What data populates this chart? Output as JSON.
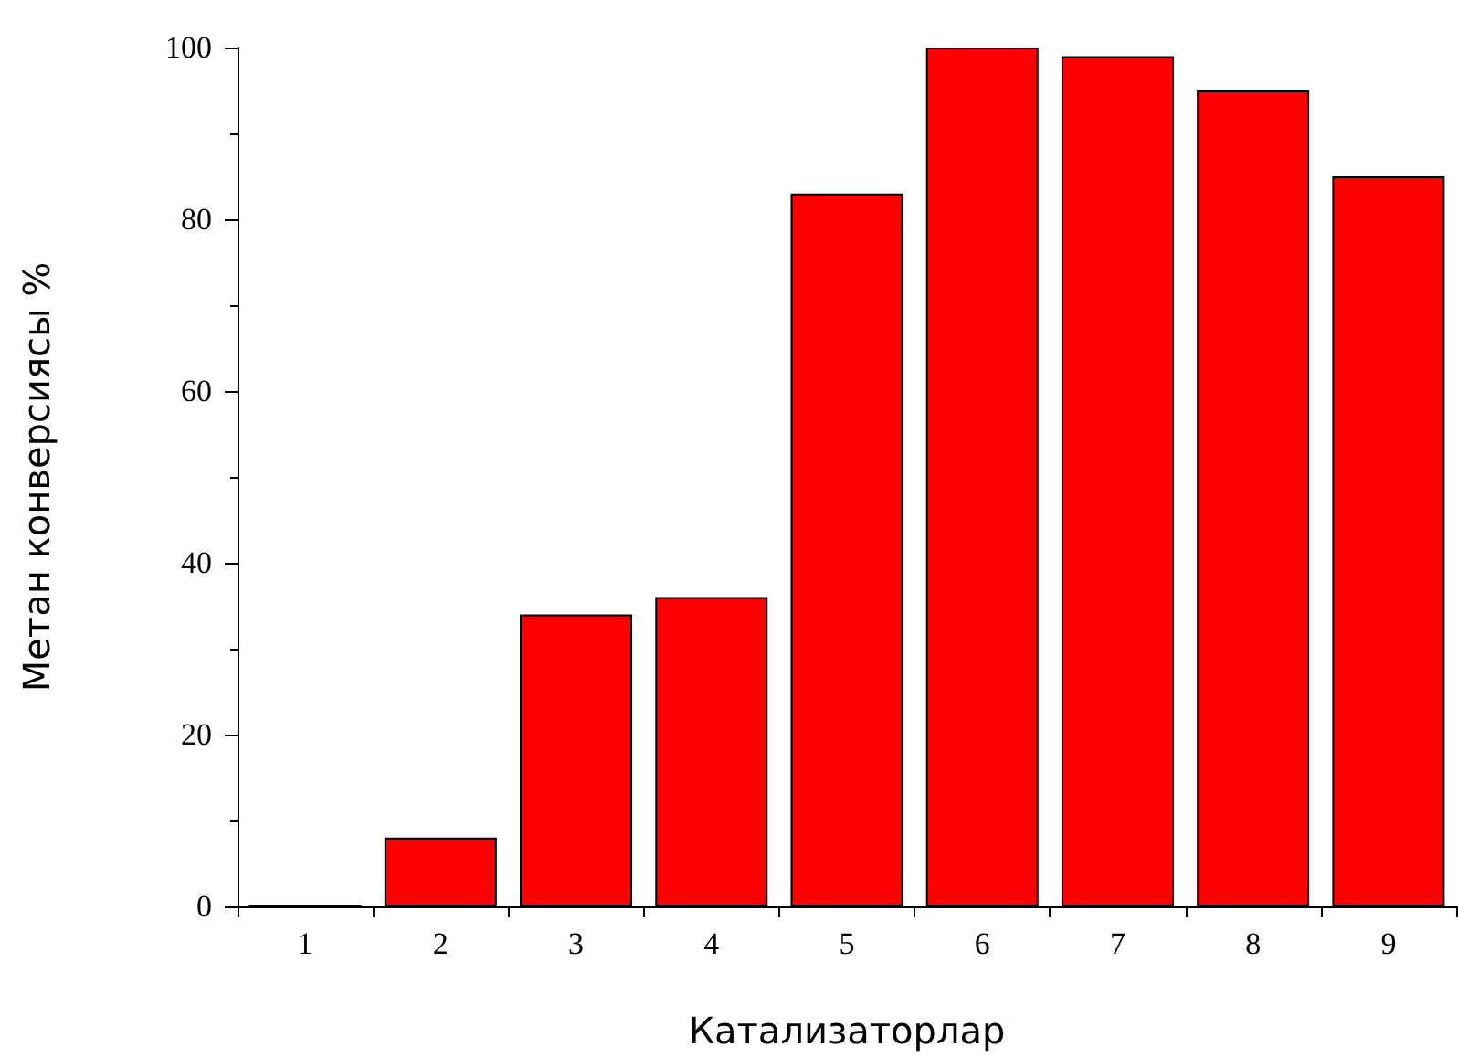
{
  "chart_data": {
    "type": "bar",
    "xlabel": "Катализаторлар",
    "ylabel": "Метан конверсиясы %",
    "categories": [
      "1",
      "2",
      "3",
      "4",
      "5",
      "6",
      "7",
      "8",
      "9"
    ],
    "values": [
      0,
      8,
      34,
      36,
      83,
      100,
      99,
      95,
      85
    ],
    "color": "#ff0000",
    "ylim": [
      0,
      100
    ],
    "yticks": [
      0,
      20,
      40,
      60,
      80,
      100
    ],
    "grid": false
  }
}
